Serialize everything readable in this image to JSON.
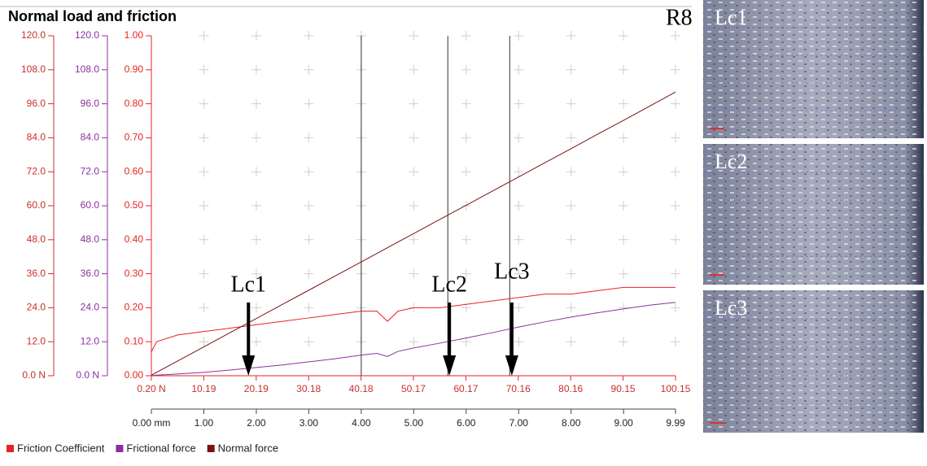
{
  "chart_data": {
    "type": "line",
    "title": "Normal load and friction",
    "annotation": "R8",
    "x": [
      0,
      0.1,
      0.5,
      1,
      1.5,
      2,
      2.5,
      3,
      3.5,
      4,
      4.3,
      4.5,
      4.7,
      5,
      5.5,
      6,
      6.5,
      7,
      7.5,
      8,
      8.5,
      9,
      9.5,
      9.99
    ],
    "xlim": [
      0,
      9.99
    ],
    "xticks": [
      {
        "value": 0,
        "label": "0.00 mm"
      },
      {
        "value": 1,
        "label": "1.00"
      },
      {
        "value": 2,
        "label": "2.00"
      },
      {
        "value": 3,
        "label": "3.00"
      },
      {
        "value": 4,
        "label": "4.00"
      },
      {
        "value": 5,
        "label": "5.00"
      },
      {
        "value": 6,
        "label": "6.00"
      },
      {
        "value": 7,
        "label": "7.00"
      },
      {
        "value": 8,
        "label": "8.00"
      },
      {
        "value": 9,
        "label": "9.00"
      },
      9.99
    ],
    "x2lim": [
      0.2,
      100.15
    ],
    "x2ticks": [
      {
        "value": 0.2,
        "label": "0.20 N"
      },
      10.19,
      20.19,
      30.18,
      40.18,
      50.17,
      60.17,
      70.16,
      80.16,
      90.15,
      100.15
    ],
    "ylim": [
      0,
      120
    ],
    "yticks": [
      {
        "value": 0,
        "label": "0.0 N"
      },
      {
        "value": 12,
        "label": "12.0"
      },
      {
        "value": 24,
        "label": "24.0"
      },
      {
        "value": 36,
        "label": "36.0"
      },
      {
        "value": 48,
        "label": "48.0"
      },
      {
        "value": 60,
        "label": "60.0"
      },
      {
        "value": 72,
        "label": "72.0"
      },
      {
        "value": 84,
        "label": "84.0"
      },
      {
        "value": 96,
        "label": "96.0"
      },
      {
        "value": 108,
        "label": "108.0"
      },
      {
        "value": 120,
        "label": "120.0"
      }
    ],
    "y2lim": [
      0,
      120
    ],
    "y2ticks": [
      {
        "value": 0,
        "label": "0.0 N"
      },
      {
        "value": 12,
        "label": "12.0"
      },
      {
        "value": 24,
        "label": "24.0"
      },
      {
        "value": 36,
        "label": "36.0"
      },
      {
        "value": 48,
        "label": "48.0"
      },
      {
        "value": 60,
        "label": "60.0"
      },
      {
        "value": 72,
        "label": "72.0"
      },
      {
        "value": 84,
        "label": "84.0"
      },
      {
        "value": 96,
        "label": "96.0"
      },
      {
        "value": 108,
        "label": "108.0"
      },
      {
        "value": 120,
        "label": "120.0"
      }
    ],
    "y3lim": [
      0,
      1
    ],
    "y3ticks": [
      {
        "value": 0,
        "label": "0.00"
      },
      {
        "value": 0.1,
        "label": "0.10"
      },
      {
        "value": 0.2,
        "label": "0.20"
      },
      {
        "value": 0.3,
        "label": "0.30"
      },
      {
        "value": 0.4,
        "label": "0.40"
      },
      {
        "value": 0.5,
        "label": "0.50"
      },
      {
        "value": 0.6,
        "label": "0.60"
      },
      {
        "value": 0.7,
        "label": "0.70"
      },
      {
        "value": 0.8,
        "label": "0.80"
      },
      {
        "value": 0.9,
        "label": "0.90"
      },
      {
        "value": 1,
        "label": "1.00"
      }
    ],
    "grid": true,
    "series": [
      {
        "name": "Friction Coefficient",
        "color": "#e8231f",
        "axis": "y3",
        "values": [
          0.07,
          0.1,
          0.12,
          0.13,
          0.14,
          0.15,
          0.16,
          0.17,
          0.18,
          0.19,
          0.19,
          0.16,
          0.19,
          0.2,
          0.2,
          0.21,
          0.22,
          0.23,
          0.24,
          0.24,
          0.25,
          0.26,
          0.26,
          0.26
        ]
      },
      {
        "name": "Frictional force",
        "color": "#8e2fa0",
        "axis": "y2",
        "values": [
          0,
          0.2,
          0.6,
          1.2,
          2.0,
          2.9,
          3.8,
          4.9,
          6.0,
          7.3,
          7.9,
          6.8,
          8.6,
          9.8,
          11.5,
          13.3,
          15.2,
          17.2,
          19.0,
          20.7,
          22.2,
          23.6,
          24.9,
          25.9
        ]
      },
      {
        "name": "Normal force",
        "color": "#7a1212",
        "axis": "y",
        "values": [
          0.2,
          1.2,
          5.2,
          10.19,
          15.2,
          20.19,
          25.2,
          30.18,
          35.2,
          40.18,
          43.2,
          45.2,
          47.2,
          50.17,
          55.2,
          60.17,
          65.2,
          70.16,
          75.2,
          80.16,
          85.2,
          90.15,
          95.2,
          100.15
        ]
      }
    ],
    "marker_lines": [
      4.0,
      5.65,
      6.83
    ],
    "critical_loads": [
      {
        "label": "Lc1",
        "x": 1.85
      },
      {
        "label": "Lc2",
        "x": 5.68
      },
      {
        "label": "Lc3",
        "x": 6.87
      }
    ]
  },
  "micrographs": [
    "Lc1",
    "Lc2",
    "Lc3"
  ]
}
